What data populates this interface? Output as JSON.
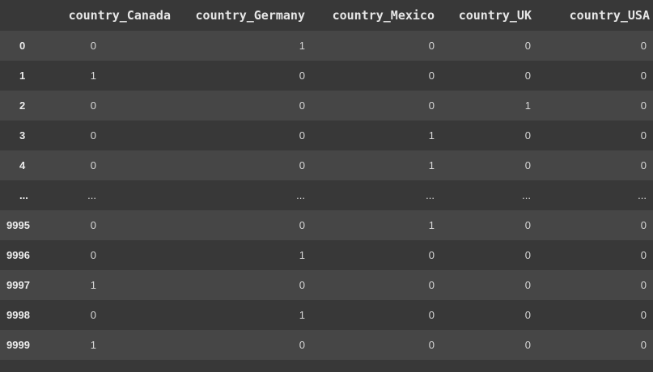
{
  "table": {
    "columns": [
      "",
      "country_Canada",
      "country_Germany",
      "country_Mexico",
      "country_UK",
      "country_USA"
    ],
    "rows": [
      {
        "index": "0",
        "values": [
          "0",
          "1",
          "0",
          "0",
          "0"
        ]
      },
      {
        "index": "1",
        "values": [
          "1",
          "0",
          "0",
          "0",
          "0"
        ]
      },
      {
        "index": "2",
        "values": [
          "0",
          "0",
          "0",
          "1",
          "0"
        ]
      },
      {
        "index": "3",
        "values": [
          "0",
          "0",
          "1",
          "0",
          "0"
        ]
      },
      {
        "index": "4",
        "values": [
          "0",
          "0",
          "1",
          "0",
          "0"
        ]
      },
      {
        "index": "...",
        "values": [
          "...",
          "...",
          "...",
          "...",
          "..."
        ]
      },
      {
        "index": "9995",
        "values": [
          "0",
          "0",
          "1",
          "0",
          "0"
        ]
      },
      {
        "index": "9996",
        "values": [
          "0",
          "1",
          "0",
          "0",
          "0"
        ]
      },
      {
        "index": "9997",
        "values": [
          "1",
          "0",
          "0",
          "0",
          "0"
        ]
      },
      {
        "index": "9998",
        "values": [
          "0",
          "1",
          "0",
          "0",
          "0"
        ]
      },
      {
        "index": "9999",
        "values": [
          "1",
          "0",
          "0",
          "0",
          "0"
        ]
      }
    ]
  },
  "colors": {
    "background": "#383838",
    "row_alt": "#464646",
    "text": "#d8d8d8"
  }
}
